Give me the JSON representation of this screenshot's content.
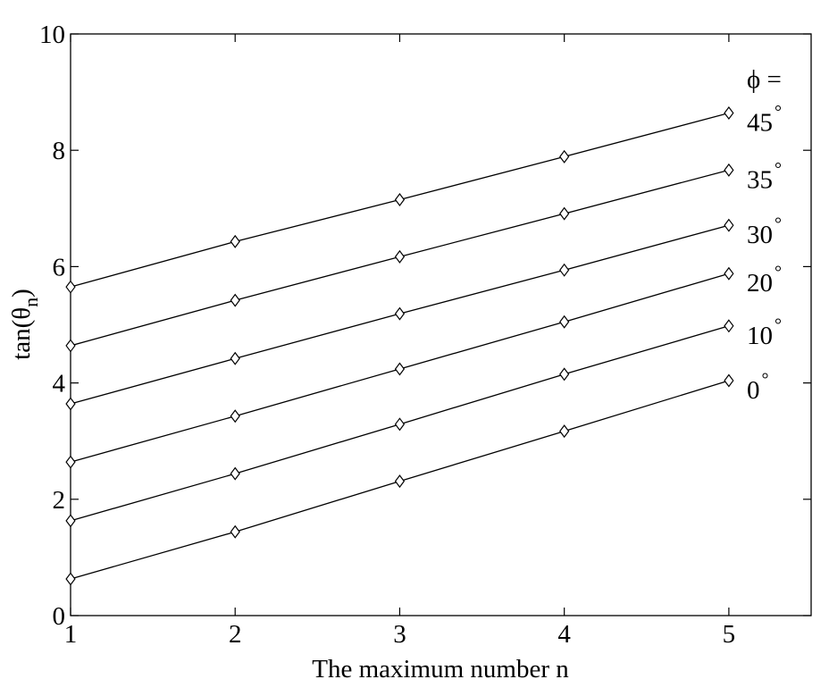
{
  "chart_data": {
    "type": "line",
    "xlabel": "The maximum number n",
    "ylabel_main": "tan(θ",
    "ylabel_sub": "n",
    "ylabel_close": ")",
    "xlim": [
      1,
      5.5
    ],
    "ylim": [
      0,
      10
    ],
    "x_ticks": [
      "1",
      "2",
      "3",
      "4",
      "5"
    ],
    "y_ticks": [
      "0",
      "2",
      "4",
      "6",
      "8",
      "10"
    ],
    "x": [
      1,
      2,
      3,
      4,
      5
    ],
    "marker": "diamond",
    "legend_heading": "ϕ =",
    "series": [
      {
        "name": "45",
        "label_unit": "°",
        "values": [
          5.65,
          6.43,
          7.15,
          7.89,
          8.64
        ]
      },
      {
        "name": "35",
        "label_unit": "°",
        "values": [
          4.64,
          5.42,
          6.17,
          6.91,
          7.66
        ]
      },
      {
        "name": "30",
        "label_unit": "°",
        "values": [
          3.64,
          4.42,
          5.19,
          5.94,
          6.71
        ]
      },
      {
        "name": "20",
        "label_unit": "°",
        "values": [
          2.64,
          3.43,
          4.24,
          5.05,
          5.88
        ]
      },
      {
        "name": "10",
        "label_unit": "°",
        "values": [
          1.63,
          2.44,
          3.29,
          4.15,
          4.98
        ]
      },
      {
        "name": "0",
        "label_unit": "°",
        "values": [
          0.63,
          1.44,
          2.31,
          3.17,
          4.04
        ]
      }
    ]
  }
}
